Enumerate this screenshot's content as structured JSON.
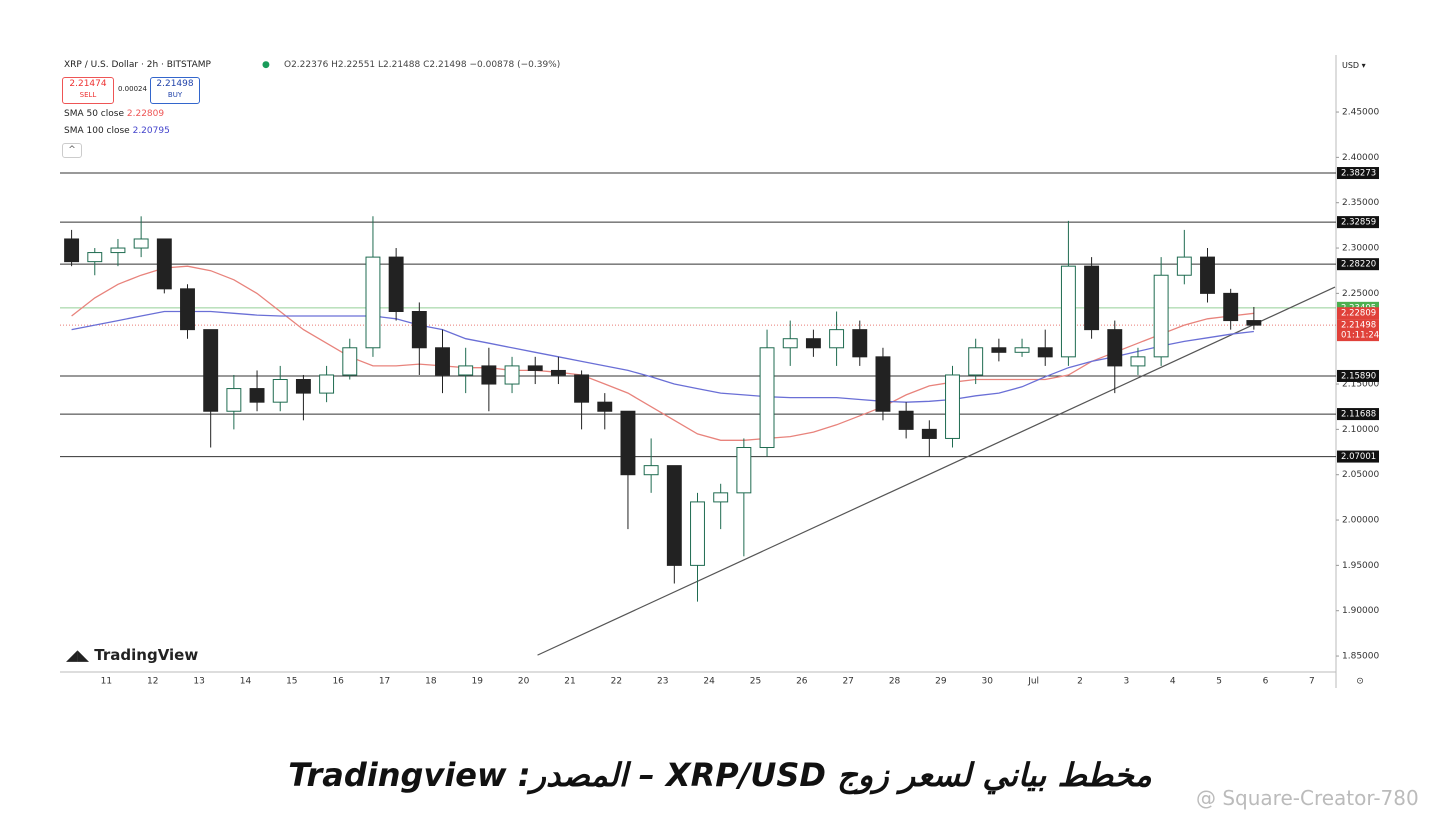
{
  "chart_data": {
    "type": "candlestick",
    "title": "XRP / U.S. Dollar · 2h · BITSTAMP",
    "ohlc_legend": "O2.22376 H2.22551 L2.21488 C2.21498 −0.00878 (−0.39%)",
    "sell": {
      "price": 2.21474,
      "label": "SELL"
    },
    "buy": {
      "price": 2.21498,
      "label": "BUY"
    },
    "spread": 0.00024,
    "currency": "USD",
    "brand": "TradingView",
    "up_color": "#1f6b50",
    "down_color": "#222222",
    "categories": [
      null,
      null,
      "11",
      null,
      "12",
      null,
      "13",
      null,
      "14",
      null,
      "15",
      null,
      "16",
      null,
      "17",
      null,
      "18",
      null,
      "19",
      null,
      "20",
      null,
      "21",
      null,
      "22",
      null,
      "23",
      null,
      "24",
      null,
      "25",
      null,
      "26",
      null,
      "27",
      null,
      "28",
      null,
      "29",
      null,
      "30",
      null,
      "Jul",
      null,
      "2",
      null,
      "3",
      null,
      "4",
      null,
      "5",
      null,
      "6",
      null,
      "7"
    ],
    "open": [
      2.31,
      2.285,
      2.295,
      2.3,
      2.31,
      2.255,
      2.21,
      2.12,
      2.145,
      2.13,
      2.155,
      2.14,
      2.16,
      2.19,
      2.29,
      2.23,
      2.19,
      2.16,
      2.17,
      2.15,
      2.17,
      2.165,
      2.16,
      2.13,
      2.12,
      2.05,
      2.06,
      1.95,
      2.02,
      2.03,
      2.08,
      2.19,
      2.2,
      2.19,
      2.21,
      2.18,
      2.12,
      2.1,
      2.09,
      2.16,
      2.19,
      2.185,
      2.19,
      2.18,
      2.28,
      2.21,
      2.17,
      2.18,
      2.27,
      2.29,
      2.25,
      2.22,
      null,
      null,
      null
    ],
    "high": [
      2.32,
      2.3,
      2.31,
      2.335,
      2.31,
      2.26,
      2.21,
      2.16,
      2.165,
      2.17,
      2.16,
      2.17,
      2.2,
      2.335,
      2.3,
      2.24,
      2.21,
      2.19,
      2.19,
      2.18,
      2.18,
      2.18,
      2.165,
      2.14,
      2.12,
      2.09,
      2.06,
      2.03,
      2.04,
      2.09,
      2.21,
      2.22,
      2.21,
      2.23,
      2.22,
      2.19,
      2.13,
      2.11,
      2.17,
      2.2,
      2.2,
      2.2,
      2.21,
      2.33,
      2.29,
      2.22,
      2.19,
      2.29,
      2.32,
      2.3,
      2.255,
      2.235,
      null,
      null,
      null
    ],
    "low": [
      2.28,
      2.27,
      2.28,
      2.29,
      2.25,
      2.2,
      2.08,
      2.1,
      2.12,
      2.12,
      2.11,
      2.13,
      2.155,
      2.18,
      2.22,
      2.16,
      2.14,
      2.14,
      2.12,
      2.14,
      2.15,
      2.15,
      2.1,
      2.1,
      1.99,
      2.03,
      1.93,
      1.91,
      1.99,
      1.96,
      2.07,
      2.17,
      2.18,
      2.17,
      2.17,
      2.11,
      2.09,
      2.07,
      2.08,
      2.15,
      2.175,
      2.18,
      2.17,
      2.17,
      2.2,
      2.14,
      2.16,
      2.17,
      2.26,
      2.24,
      2.21,
      2.21,
      null,
      null,
      null
    ],
    "close": [
      2.285,
      2.295,
      2.3,
      2.31,
      2.255,
      2.21,
      2.12,
      2.145,
      2.13,
      2.155,
      2.14,
      2.16,
      2.19,
      2.29,
      2.23,
      2.19,
      2.16,
      2.17,
      2.15,
      2.17,
      2.165,
      2.16,
      2.13,
      2.12,
      2.05,
      2.06,
      1.95,
      2.02,
      2.03,
      2.08,
      2.19,
      2.2,
      2.19,
      2.21,
      2.18,
      2.12,
      2.1,
      2.09,
      2.16,
      2.19,
      2.185,
      2.19,
      2.18,
      2.28,
      2.21,
      2.17,
      2.18,
      2.27,
      2.29,
      2.25,
      2.22,
      2.215,
      null,
      null,
      null
    ],
    "series": [
      {
        "name": "SMA 50 close",
        "color": "#e8837c",
        "last": 2.22809,
        "values": [
          2.225,
          2.245,
          2.26,
          2.27,
          2.278,
          2.28,
          2.275,
          2.265,
          2.25,
          2.23,
          2.21,
          2.195,
          2.18,
          2.17,
          2.17,
          2.172,
          2.17,
          2.168,
          2.168,
          2.165,
          2.165,
          2.163,
          2.16,
          2.15,
          2.14,
          2.125,
          2.11,
          2.095,
          2.088,
          2.088,
          2.09,
          2.092,
          2.097,
          2.105,
          2.115,
          2.125,
          2.138,
          2.148,
          2.152,
          2.155,
          2.155,
          2.155,
          2.155,
          2.16,
          2.175,
          2.185,
          2.195,
          2.205,
          2.215,
          2.222,
          2.225,
          2.228,
          null,
          null,
          null
        ]
      },
      {
        "name": "SMA 100 close",
        "color": "#6a6fd6",
        "last": 2.20795,
        "values": [
          2.21,
          2.215,
          2.22,
          2.225,
          2.23,
          2.23,
          2.23,
          2.228,
          2.226,
          2.225,
          2.225,
          2.225,
          2.225,
          2.225,
          2.222,
          2.215,
          2.21,
          2.2,
          2.195,
          2.19,
          2.185,
          2.18,
          2.175,
          2.17,
          2.165,
          2.158,
          2.15,
          2.145,
          2.14,
          2.138,
          2.136,
          2.135,
          2.135,
          2.135,
          2.133,
          2.131,
          2.13,
          2.131,
          2.133,
          2.137,
          2.14,
          2.147,
          2.158,
          2.168,
          2.175,
          2.18,
          2.186,
          2.192,
          2.197,
          2.201,
          2.205,
          2.208,
          null,
          null,
          null
        ]
      }
    ],
    "levels": [
      {
        "value": 2.38273,
        "label": "2.38273"
      },
      {
        "value": 2.32859,
        "label": "2.32859"
      },
      {
        "value": 2.2822,
        "label": "2.28220"
      },
      {
        "value": 2.1589,
        "label": "2.15890"
      },
      {
        "value": 2.11688,
        "label": "2.11688"
      },
      {
        "value": 2.07001,
        "label": "2.07001"
      }
    ],
    "green_level": {
      "value": 2.23405,
      "color": "#4caf50"
    },
    "last_price": {
      "value": 2.21498,
      "countdown": "01:11:24",
      "color": "#e0413a"
    },
    "trendline": {
      "x": [
        20.6,
        55
      ],
      "y": [
        1.851,
        2.257
      ]
    },
    "ylim": [
      1.8324,
      2.5096
    ],
    "yticks": [
      {
        "value": 2.45,
        "label": "2.45000"
      },
      {
        "value": 2.4,
        "label": "2.40000"
      },
      {
        "value": 2.35,
        "label": "2.35000"
      },
      {
        "value": 2.3,
        "label": "2.30000"
      },
      {
        "value": 2.25,
        "label": "2.25000"
      },
      {
        "value": 2.15,
        "label": "2.15000"
      },
      {
        "value": 2.1,
        "label": "2.10000"
      },
      {
        "value": 2.05,
        "label": "2.05000"
      },
      {
        "value": 2.0,
        "label": "2.00000"
      },
      {
        "value": 1.95,
        "label": "1.95000"
      },
      {
        "value": 1.9,
        "label": "1.90000"
      },
      {
        "value": 1.85,
        "label": "1.85000"
      }
    ]
  },
  "caption": "مخطط بياني لسعر زوج XRP/USD – المصدر: Tradingview",
  "watermark": "@ Square-Creator-780"
}
